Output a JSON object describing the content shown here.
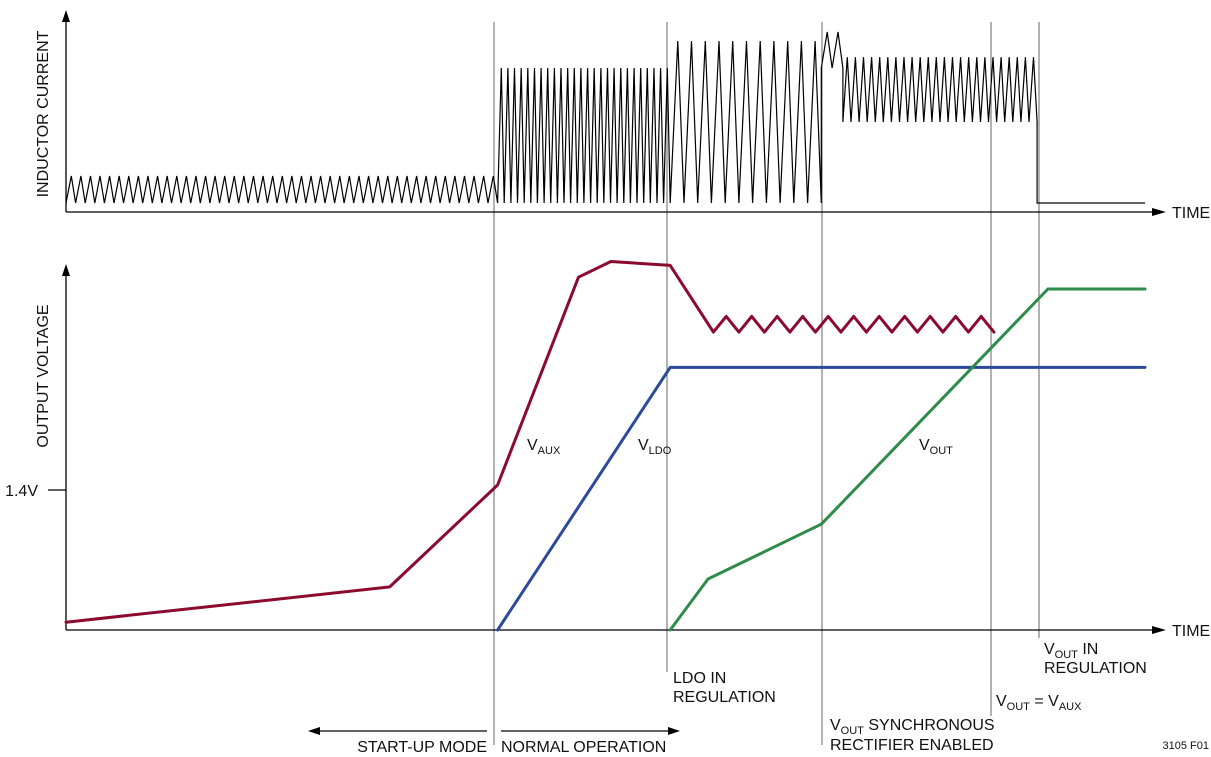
{
  "chart_data": [
    {
      "type": "line",
      "ylabel": "INDUCTOR CURRENT",
      "xlabel": "TIME",
      "series": [
        {
          "name": "INDUCTOR CURRENT",
          "color": "#000000",
          "segments": [
            {
              "x_start": 0,
              "x_end": 0.4,
              "min": 0.05,
              "max": 0.2,
              "cycles": 45
            },
            {
              "x_start": 0.4,
              "x_end": 0.56,
              "min": 0.05,
              "max": 0.8,
              "cycles": 26
            },
            {
              "x_start": 0.56,
              "x_end": 0.7,
              "min": 0.05,
              "max": 0.95,
              "cycles": 11
            },
            {
              "x_start": 0.7,
              "x_end": 0.72,
              "min": 0.8,
              "max": 1.0,
              "cycles": 2
            },
            {
              "x_start": 0.72,
              "x_end": 0.9,
              "min": 0.5,
              "max": 0.86,
              "cycles": 24
            },
            {
              "x_start": 0.9,
              "x_end": 1.0,
              "min": 0.05,
              "max": 0.05,
              "cycles": 0
            }
          ]
        }
      ]
    },
    {
      "type": "line",
      "ylabel": "OUTPUT VOLTAGE",
      "xlabel": "TIME",
      "y_ticks": [
        {
          "value": 0.37,
          "label": "1.4V"
        }
      ],
      "series": [
        {
          "name": "VAUX",
          "color": "#8B0A2E",
          "x": [
            0,
            0.3,
            0.4,
            0.475,
            0.505,
            0.56,
            0.6
          ],
          "y": [
            0.02,
            0.11,
            0.37,
            0.9,
            0.94,
            0.93,
            0.76
          ],
          "ripple": {
            "x_start": 0.6,
            "x_end": 0.86,
            "low": 0.76,
            "high": 0.8,
            "cycles": 11
          }
        },
        {
          "name": "VLDO",
          "color": "#2B4A9C",
          "x": [
            0.4,
            0.56,
            1.0
          ],
          "y": [
            0,
            0.67,
            0.67
          ]
        },
        {
          "name": "VOUT",
          "color": "#2E8B4A",
          "x": [
            0.56,
            0.595,
            0.7,
            0.91,
            1.0
          ],
          "y": [
            0,
            0.13,
            0.27,
            0.87,
            0.87
          ]
        }
      ]
    }
  ],
  "labels": {
    "vaux": {
      "main": "V",
      "sub": "AUX"
    },
    "vldo": {
      "main": "V",
      "sub": "LDO"
    },
    "vout": {
      "main": "V",
      "sub": "OUT"
    },
    "ldo_reg_1": "LDO IN",
    "ldo_reg_2": "REGULATION",
    "vout_eq": {
      "a": "V",
      "a_sub": "OUT",
      "eq": " = V",
      "b_sub": "AUX"
    },
    "vout_reg": {
      "a": "V",
      "a_sub": "OUT",
      "rest": " IN",
      "line2": "REGULATION"
    },
    "sync": {
      "a": "V",
      "a_sub": "OUT",
      "rest": " SYNCHRONOUS",
      "line2": "RECTIFIER ENABLED"
    },
    "startup": "START-UP MODE",
    "normal": "NORMAL OPERATION",
    "figure_id": "3105 F01"
  }
}
